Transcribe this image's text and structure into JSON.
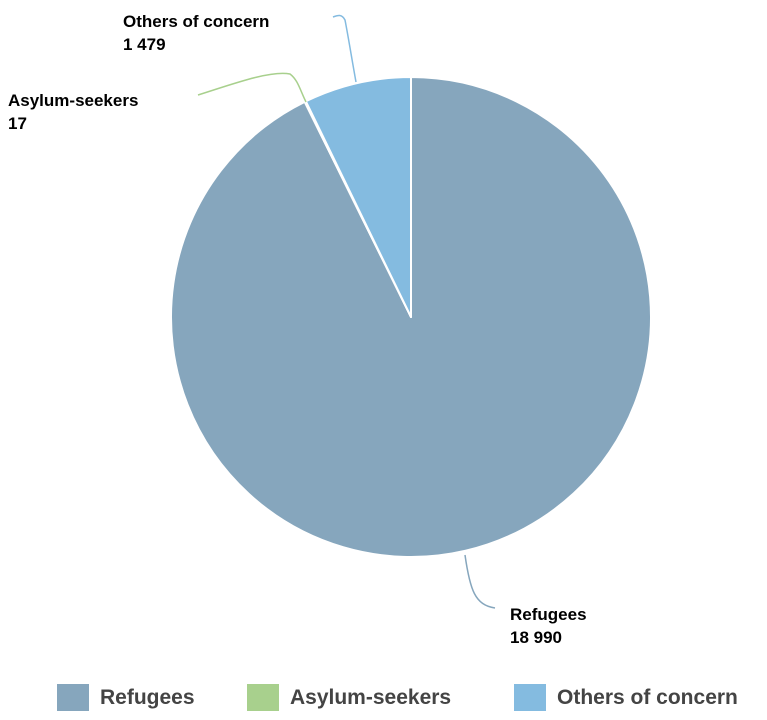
{
  "chart_data": {
    "type": "pie",
    "title": "",
    "slices": [
      {
        "name": "Refugees",
        "value": 18990,
        "value_label": "18 990",
        "color": "#86a6bd"
      },
      {
        "name": "Asylum-seekers",
        "value": 17,
        "value_label": "17",
        "color": "#a8d08d"
      },
      {
        "name": "Others of concern",
        "value": 1479,
        "value_label": "1 479",
        "color": "#84bbe0"
      }
    ],
    "legend": {
      "position": "bottom"
    }
  }
}
